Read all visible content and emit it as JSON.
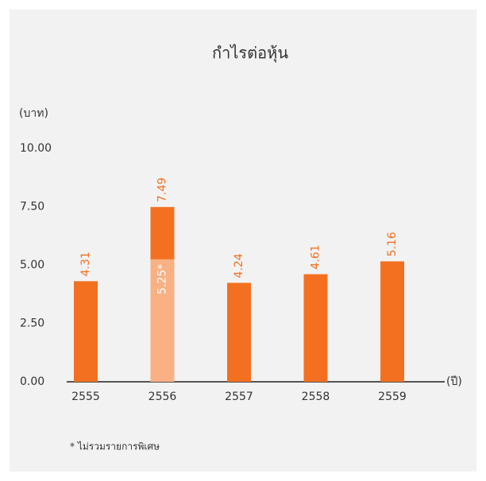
{
  "chart_data": {
    "type": "bar",
    "title": "กำไรต่อหุ้น",
    "y_label": "(บาท)",
    "x_label": "(ปี)",
    "categories": [
      "2555",
      "2556",
      "2557",
      "2558",
      "2559"
    ],
    "values": [
      4.31,
      7.49,
      4.24,
      4.61,
      5.16
    ],
    "color": "#f37021",
    "overlay_values": [
      null,
      5.25,
      null,
      null,
      null
    ],
    "overlay_value_labels": [
      null,
      "5.25*",
      null,
      null,
      null
    ],
    "overlay_color": "#f9b183",
    "ylim": [
      0,
      10
    ],
    "yticks": [
      {
        "value": 0,
        "label": "0.00"
      },
      {
        "value": 2.5,
        "label": "2.50"
      },
      {
        "value": 5,
        "label": "5.00"
      },
      {
        "value": 7.5,
        "label": "7.50"
      },
      {
        "value": 10,
        "label": "10.00"
      }
    ],
    "footnote": "* ไม่รวมรายการพิเศษ"
  }
}
